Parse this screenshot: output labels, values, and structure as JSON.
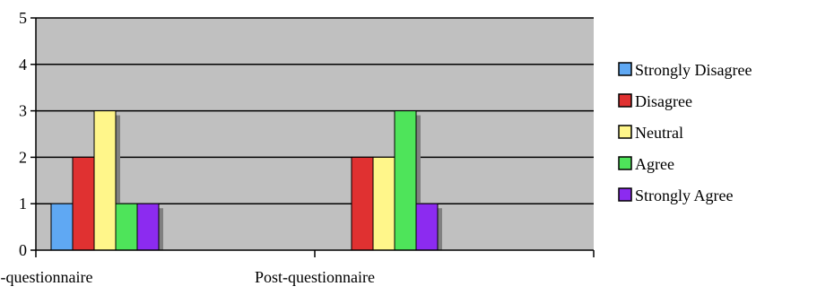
{
  "chart_data": {
    "type": "bar",
    "categories": [
      "Pre-questionnaire",
      "Post-questionnaire"
    ],
    "series": [
      {
        "name": "Strongly Disagree",
        "color": "#5fa8f3",
        "values": [
          1,
          0
        ]
      },
      {
        "name": "Disagree",
        "color": "#e03131",
        "values": [
          2,
          2
        ]
      },
      {
        "name": "Neutral",
        "color": "#fff68a",
        "values": [
          3,
          2
        ]
      },
      {
        "name": "Agree",
        "color": "#4ee45a",
        "values": [
          1,
          3
        ]
      },
      {
        "name": "Strongly Agree",
        "color": "#8c2bf0",
        "values": [
          1,
          1
        ]
      }
    ],
    "ylim": [
      0,
      5
    ],
    "yticks": [
      "0",
      "1",
      "2",
      "3",
      "4",
      "5"
    ],
    "grid": true,
    "legend_position": "right",
    "plot_background": "#c0c0c0"
  }
}
